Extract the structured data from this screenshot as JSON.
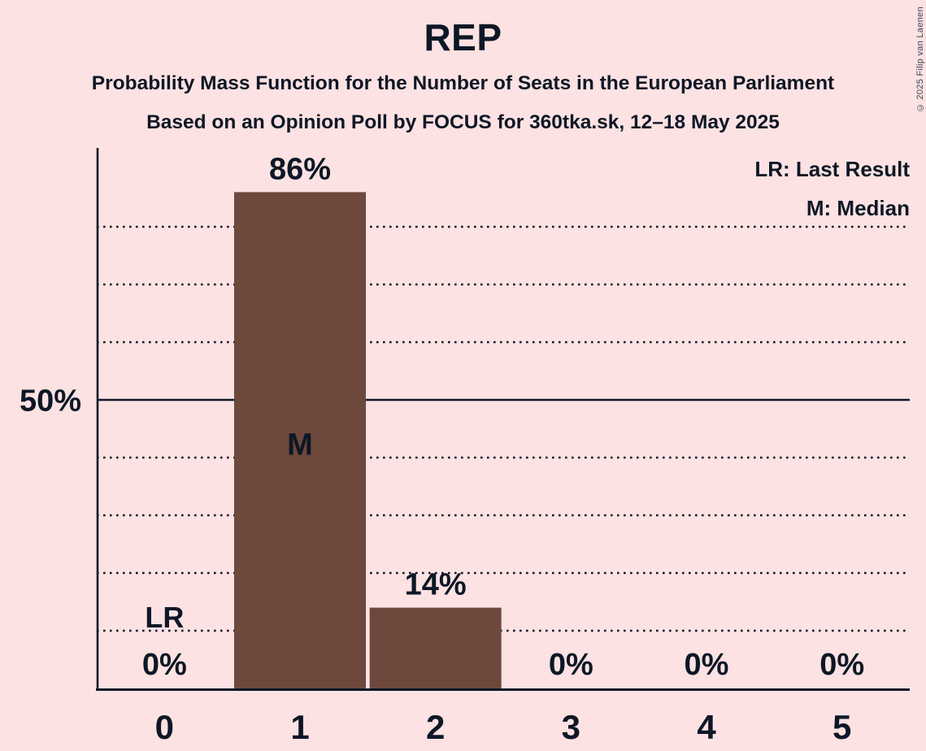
{
  "header": {
    "title": "REP",
    "subtitle1": "Probability Mass Function for the Number of Seats in the European Parliament",
    "subtitle2": "Based on an Opinion Poll by FOCUS for 360tka.sk, 12–18 May 2025"
  },
  "legend": {
    "lr": "LR: Last Result",
    "m": "M: Median",
    "position": "top-right"
  },
  "copyright": "© 2025 Filip van Laenen",
  "colors": {
    "background": "#fce2e2",
    "bar": "#6d483c",
    "text": "#0e1726",
    "inside_bar_label": "#f9dbdb",
    "copyright_text": "#3a4553"
  },
  "chart_data": {
    "type": "bar",
    "title": "REP",
    "categories": [
      "0",
      "1",
      "2",
      "3",
      "4",
      "5"
    ],
    "values": [
      0,
      86,
      14,
      0,
      0,
      0
    ],
    "value_labels": [
      "0%",
      "86%",
      "14%",
      "0%",
      "0%",
      "0%"
    ],
    "xlabel": "",
    "ylabel": "",
    "ylim": [
      0,
      100
    ],
    "y_axis": {
      "tick_percent": 50,
      "tick_label": "50%"
    },
    "gridlines": {
      "dotted_percents": [
        10,
        20,
        30,
        40,
        60,
        70,
        80
      ],
      "solid_percent": 50,
      "style": "dotted-horizontal"
    },
    "annotations": [
      {
        "label": "M",
        "meaning": "Median",
        "category": "1",
        "placement": "inside-bar"
      },
      {
        "label": "LR",
        "meaning": "Last Result",
        "category": "0",
        "placement": "above-baseline"
      }
    ]
  }
}
